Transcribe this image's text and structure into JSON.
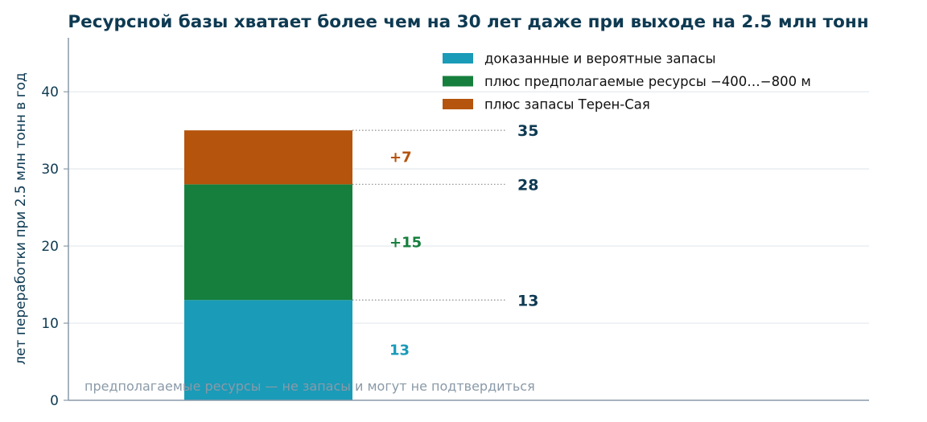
{
  "chart_data": {
    "type": "bar",
    "stacked": true,
    "title": "Ресурсной базы хватает более чем на 30 лет даже при выходе на 2.5 млн тонн",
    "xlabel": "",
    "ylabel": "лет переработки при 2.5 млн тонн в год",
    "ylim": [
      0,
      47
    ],
    "yticks": [
      0,
      10,
      20,
      30,
      40
    ],
    "grid": true,
    "legend_position": "top-right",
    "series": [
      {
        "name": "доказанные и вероятные запасы",
        "value": 13,
        "label": "13",
        "color": "#1a9bb8"
      },
      {
        "name": "плюс предполагаемые ресурсы −400…−800 м",
        "value": 15,
        "label": "+15",
        "color": "#167f3d"
      },
      {
        "name": "плюс запасы Терен-Сая",
        "value": 7,
        "label": "+7",
        "color": "#b5540c"
      }
    ],
    "cumulative_totals": [
      {
        "value": 13,
        "label": "13"
      },
      {
        "value": 28,
        "label": "28"
      },
      {
        "value": 35,
        "label": "35"
      }
    ],
    "annotation": "предполагаемые ресурсы — не запасы и могут не подтвердиться"
  }
}
